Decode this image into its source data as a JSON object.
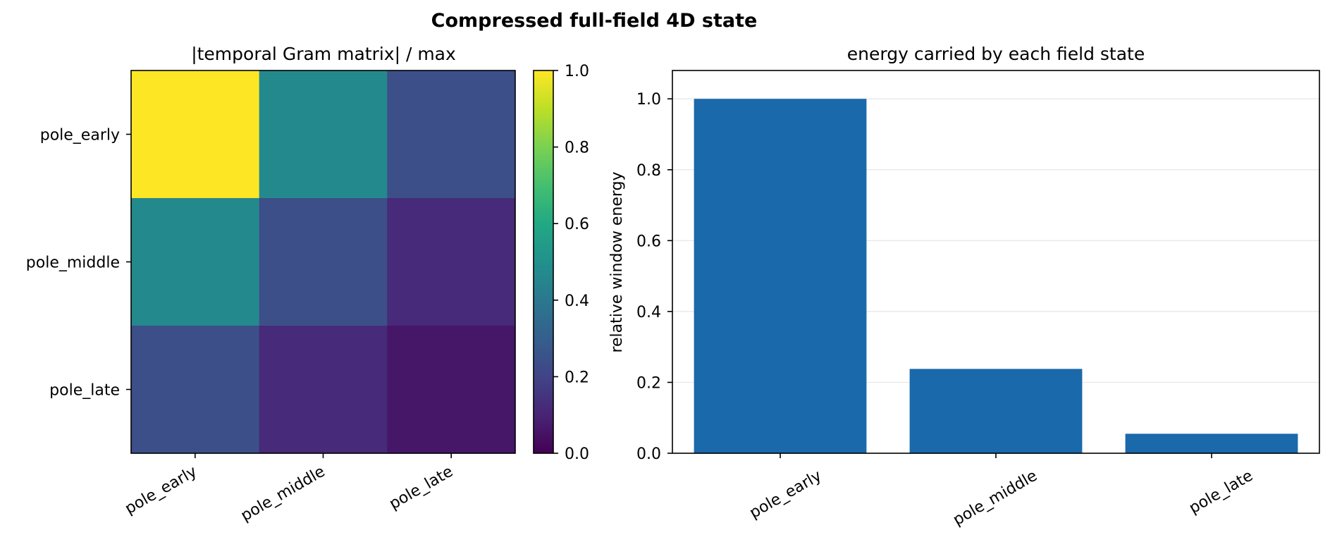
{
  "figure": {
    "title": "Compressed full-field 4D state"
  },
  "chart_data": [
    {
      "type": "heatmap",
      "title": "|temporal Gram matrix| / max",
      "row_labels": [
        "pole_early",
        "pole_middle",
        "pole_late"
      ],
      "col_labels": [
        "pole_early",
        "pole_middle",
        "pole_late"
      ],
      "values": [
        [
          1.0,
          0.47,
          0.24
        ],
        [
          0.47,
          0.24,
          0.12
        ],
        [
          0.24,
          0.12,
          0.06
        ]
      ],
      "colormap": "viridis",
      "colorbar": {
        "range": [
          0,
          1
        ],
        "ticks": [
          0.0,
          0.2,
          0.4,
          0.6,
          0.8,
          1.0
        ],
        "tick_labels": [
          "0.0",
          "0.2",
          "0.4",
          "0.6",
          "0.8",
          "1.0"
        ]
      }
    },
    {
      "type": "bar",
      "title": "energy carried by each field state",
      "categories": [
        "pole_early",
        "pole_middle",
        "pole_late"
      ],
      "values": [
        1.0,
        0.238,
        0.055
      ],
      "ylabel": "relative window energy",
      "xlabel": "",
      "ylim": [
        0,
        1.08
      ],
      "yticks": [
        0.0,
        0.2,
        0.4,
        0.6,
        0.8,
        1.0
      ],
      "ytick_labels": [
        "0.0",
        "0.2",
        "0.4",
        "0.6",
        "0.8",
        "1.0"
      ],
      "bar_color": "#1a69ab",
      "grid": "horizontal"
    }
  ]
}
